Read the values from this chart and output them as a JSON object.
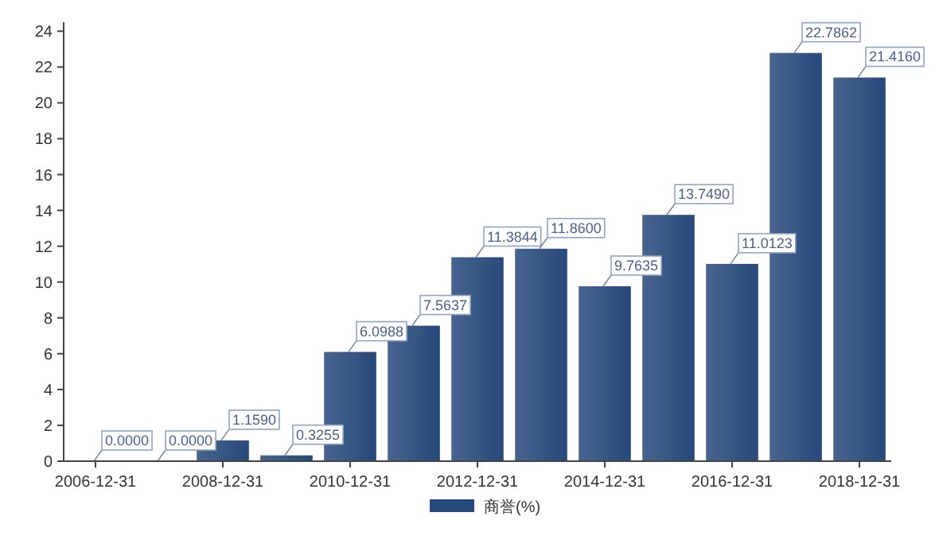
{
  "chart_data": {
    "type": "bar",
    "categories": [
      "2006-12-31",
      null,
      "2008-12-31",
      null,
      "2010-12-31",
      null,
      "2012-12-31",
      null,
      "2014-12-31",
      null,
      "2016-12-31",
      null,
      "2018-12-31"
    ],
    "series": [
      {
        "name": "商誉(%)",
        "color": "#27497a",
        "values": [
          0.0,
          0.0,
          1.159,
          0.3255,
          6.0988,
          7.5637,
          11.3844,
          11.86,
          9.7635,
          13.749,
          11.0123,
          22.7862,
          21.416
        ],
        "value_labels": [
          "0.0000",
          "0.0000",
          "1.1590",
          "0.3255",
          "6.0988",
          "7.5637",
          "11.3844",
          "11.8600",
          "9.7635",
          "13.7490",
          "11.0123",
          "22.7862",
          "21.4160"
        ]
      }
    ],
    "ylim": [
      0,
      24.5
    ],
    "yticks": [
      0,
      2,
      4,
      6,
      8,
      10,
      12,
      14,
      16,
      18,
      20,
      22,
      24
    ],
    "grid": false,
    "legend": "bottom"
  }
}
